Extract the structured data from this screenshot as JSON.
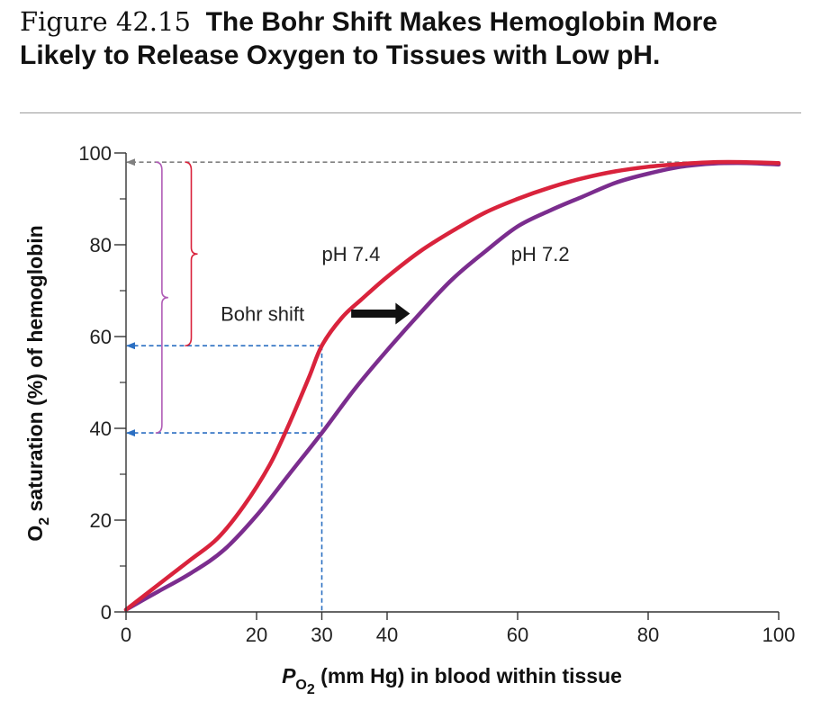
{
  "figure": {
    "number": "Figure 42.15",
    "title": "The Bohr Shift Makes Hemoglobin More Likely to Release Oxygen to Tissues with Low pH."
  },
  "chart_data": {
    "type": "line",
    "xlabel": {
      "main": "P",
      "sub": "O",
      "subsub": "2",
      "rest": " (mm Hg) in blood within tissue"
    },
    "ylabel": {
      "pre": "O",
      "sub": "2",
      "rest": " saturation (%) of hemoglobin"
    },
    "xlim": [
      0,
      100
    ],
    "ylim": [
      0,
      100
    ],
    "x_ticks": [
      0,
      20,
      30,
      40,
      60,
      80,
      100
    ],
    "x_tick_labels": [
      "0",
      "20",
      "30",
      "40",
      "60",
      "80",
      "100"
    ],
    "y_ticks": [
      0,
      20,
      40,
      60,
      80,
      100
    ],
    "y_tick_labels": [
      "0",
      "20",
      "40",
      "60",
      "80",
      "100"
    ],
    "y_minor_ticks": [
      10,
      30,
      50,
      70,
      90
    ],
    "series": [
      {
        "name": "pH 7.4",
        "color": "#d9233c",
        "label_at": [
          30,
          78
        ],
        "points": [
          [
            0,
            0.5
          ],
          [
            5,
            6
          ],
          [
            10,
            11.5
          ],
          [
            14,
            16
          ],
          [
            18,
            23
          ],
          [
            22,
            32
          ],
          [
            25,
            41
          ],
          [
            28,
            51
          ],
          [
            30,
            58
          ],
          [
            33,
            64
          ],
          [
            36,
            68
          ],
          [
            40,
            73
          ],
          [
            45,
            78.5
          ],
          [
            50,
            83
          ],
          [
            55,
            87
          ],
          [
            60,
            90
          ],
          [
            65,
            92.5
          ],
          [
            70,
            94.5
          ],
          [
            75,
            96
          ],
          [
            80,
            97
          ],
          [
            85,
            97.6
          ],
          [
            90,
            98
          ],
          [
            95,
            98
          ],
          [
            100,
            97.8
          ]
        ]
      },
      {
        "name": "pH 7.2",
        "color": "#7b2d8e",
        "label_at": [
          59,
          78
        ],
        "points": [
          [
            0,
            0.5
          ],
          [
            5,
            4.5
          ],
          [
            10,
            8.5
          ],
          [
            15,
            13.5
          ],
          [
            20,
            21
          ],
          [
            25,
            30
          ],
          [
            30,
            39
          ],
          [
            35,
            48.5
          ],
          [
            40,
            57
          ],
          [
            45,
            65
          ],
          [
            50,
            72.5
          ],
          [
            55,
            78.5
          ],
          [
            60,
            84
          ],
          [
            65,
            87.5
          ],
          [
            70,
            90.5
          ],
          [
            75,
            93.5
          ],
          [
            80,
            95.5
          ],
          [
            85,
            97
          ],
          [
            90,
            97.7
          ],
          [
            95,
            97.8
          ],
          [
            100,
            97.5
          ]
        ]
      }
    ],
    "reference_lines": [
      {
        "kind": "horizontal",
        "y": 98,
        "from_x": 100,
        "color": "#808080"
      },
      {
        "kind": "horizontal",
        "y": 58,
        "from_x": 30,
        "color": "#2b6fc2"
      },
      {
        "kind": "horizontal",
        "y": 39,
        "from_x": 30,
        "color": "#2b6fc2"
      },
      {
        "kind": "vertical",
        "x": 30,
        "from_y": 58,
        "color": "#2b6fc2"
      }
    ],
    "braces": [
      {
        "x": 10,
        "y_from": 58,
        "y_to": 98,
        "color": "#d9233c"
      },
      {
        "x": 5.5,
        "y_from": 39,
        "y_to": 98,
        "color": "#b05cb6"
      }
    ],
    "annotation": {
      "text": "Bohr shift",
      "text_at": [
        14.5,
        65
      ],
      "arrow_from": [
        34.5,
        65
      ],
      "arrow_to": [
        43.5,
        65
      ]
    }
  }
}
